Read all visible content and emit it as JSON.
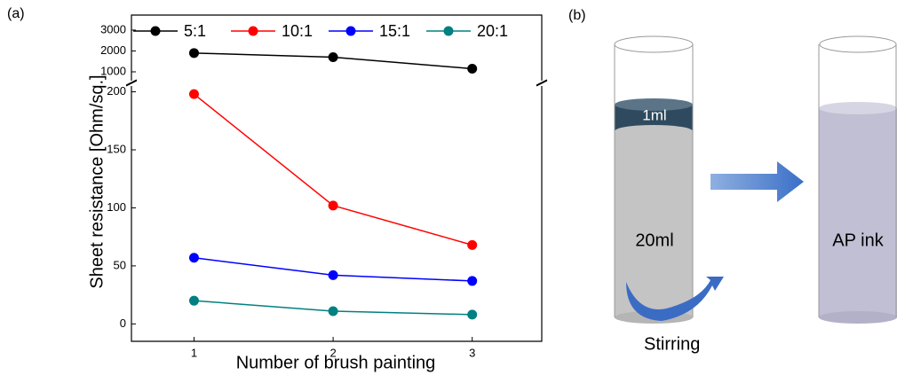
{
  "chart_data": {
    "type": "line",
    "label": "(a)",
    "x_label": "Number of brush painting",
    "y_label": "Sheet resistance [Ohm/sq.]",
    "x": [
      1,
      2,
      3
    ],
    "xlim": [
      0.55,
      3.5
    ],
    "xticks": [
      1,
      2,
      3
    ],
    "ylim": [
      -15,
      205
    ],
    "yticks": [
      0,
      50,
      100,
      150,
      200
    ],
    "upper_ylim": [
      575,
      3720
    ],
    "upper_yticks": [
      1000,
      2000,
      3000
    ],
    "series": [
      {
        "name": "5:1",
        "color": "#000000",
        "values": [
          1900,
          1700,
          1150
        ],
        "axis": "upper"
      },
      {
        "name": "10:1",
        "color": "#ff0000",
        "values": [
          198,
          102,
          68
        ]
      },
      {
        "name": "15:1",
        "color": "#0000ff",
        "values": [
          57,
          42,
          37
        ]
      },
      {
        "name": "20:1",
        "color": "#008080",
        "values": [
          20,
          11,
          8
        ]
      }
    ]
  },
  "diagram": {
    "label": "(b)",
    "top_layer": "1ml",
    "bottom_layer": "20ml",
    "result": "AP ink",
    "action": "Stirring"
  }
}
